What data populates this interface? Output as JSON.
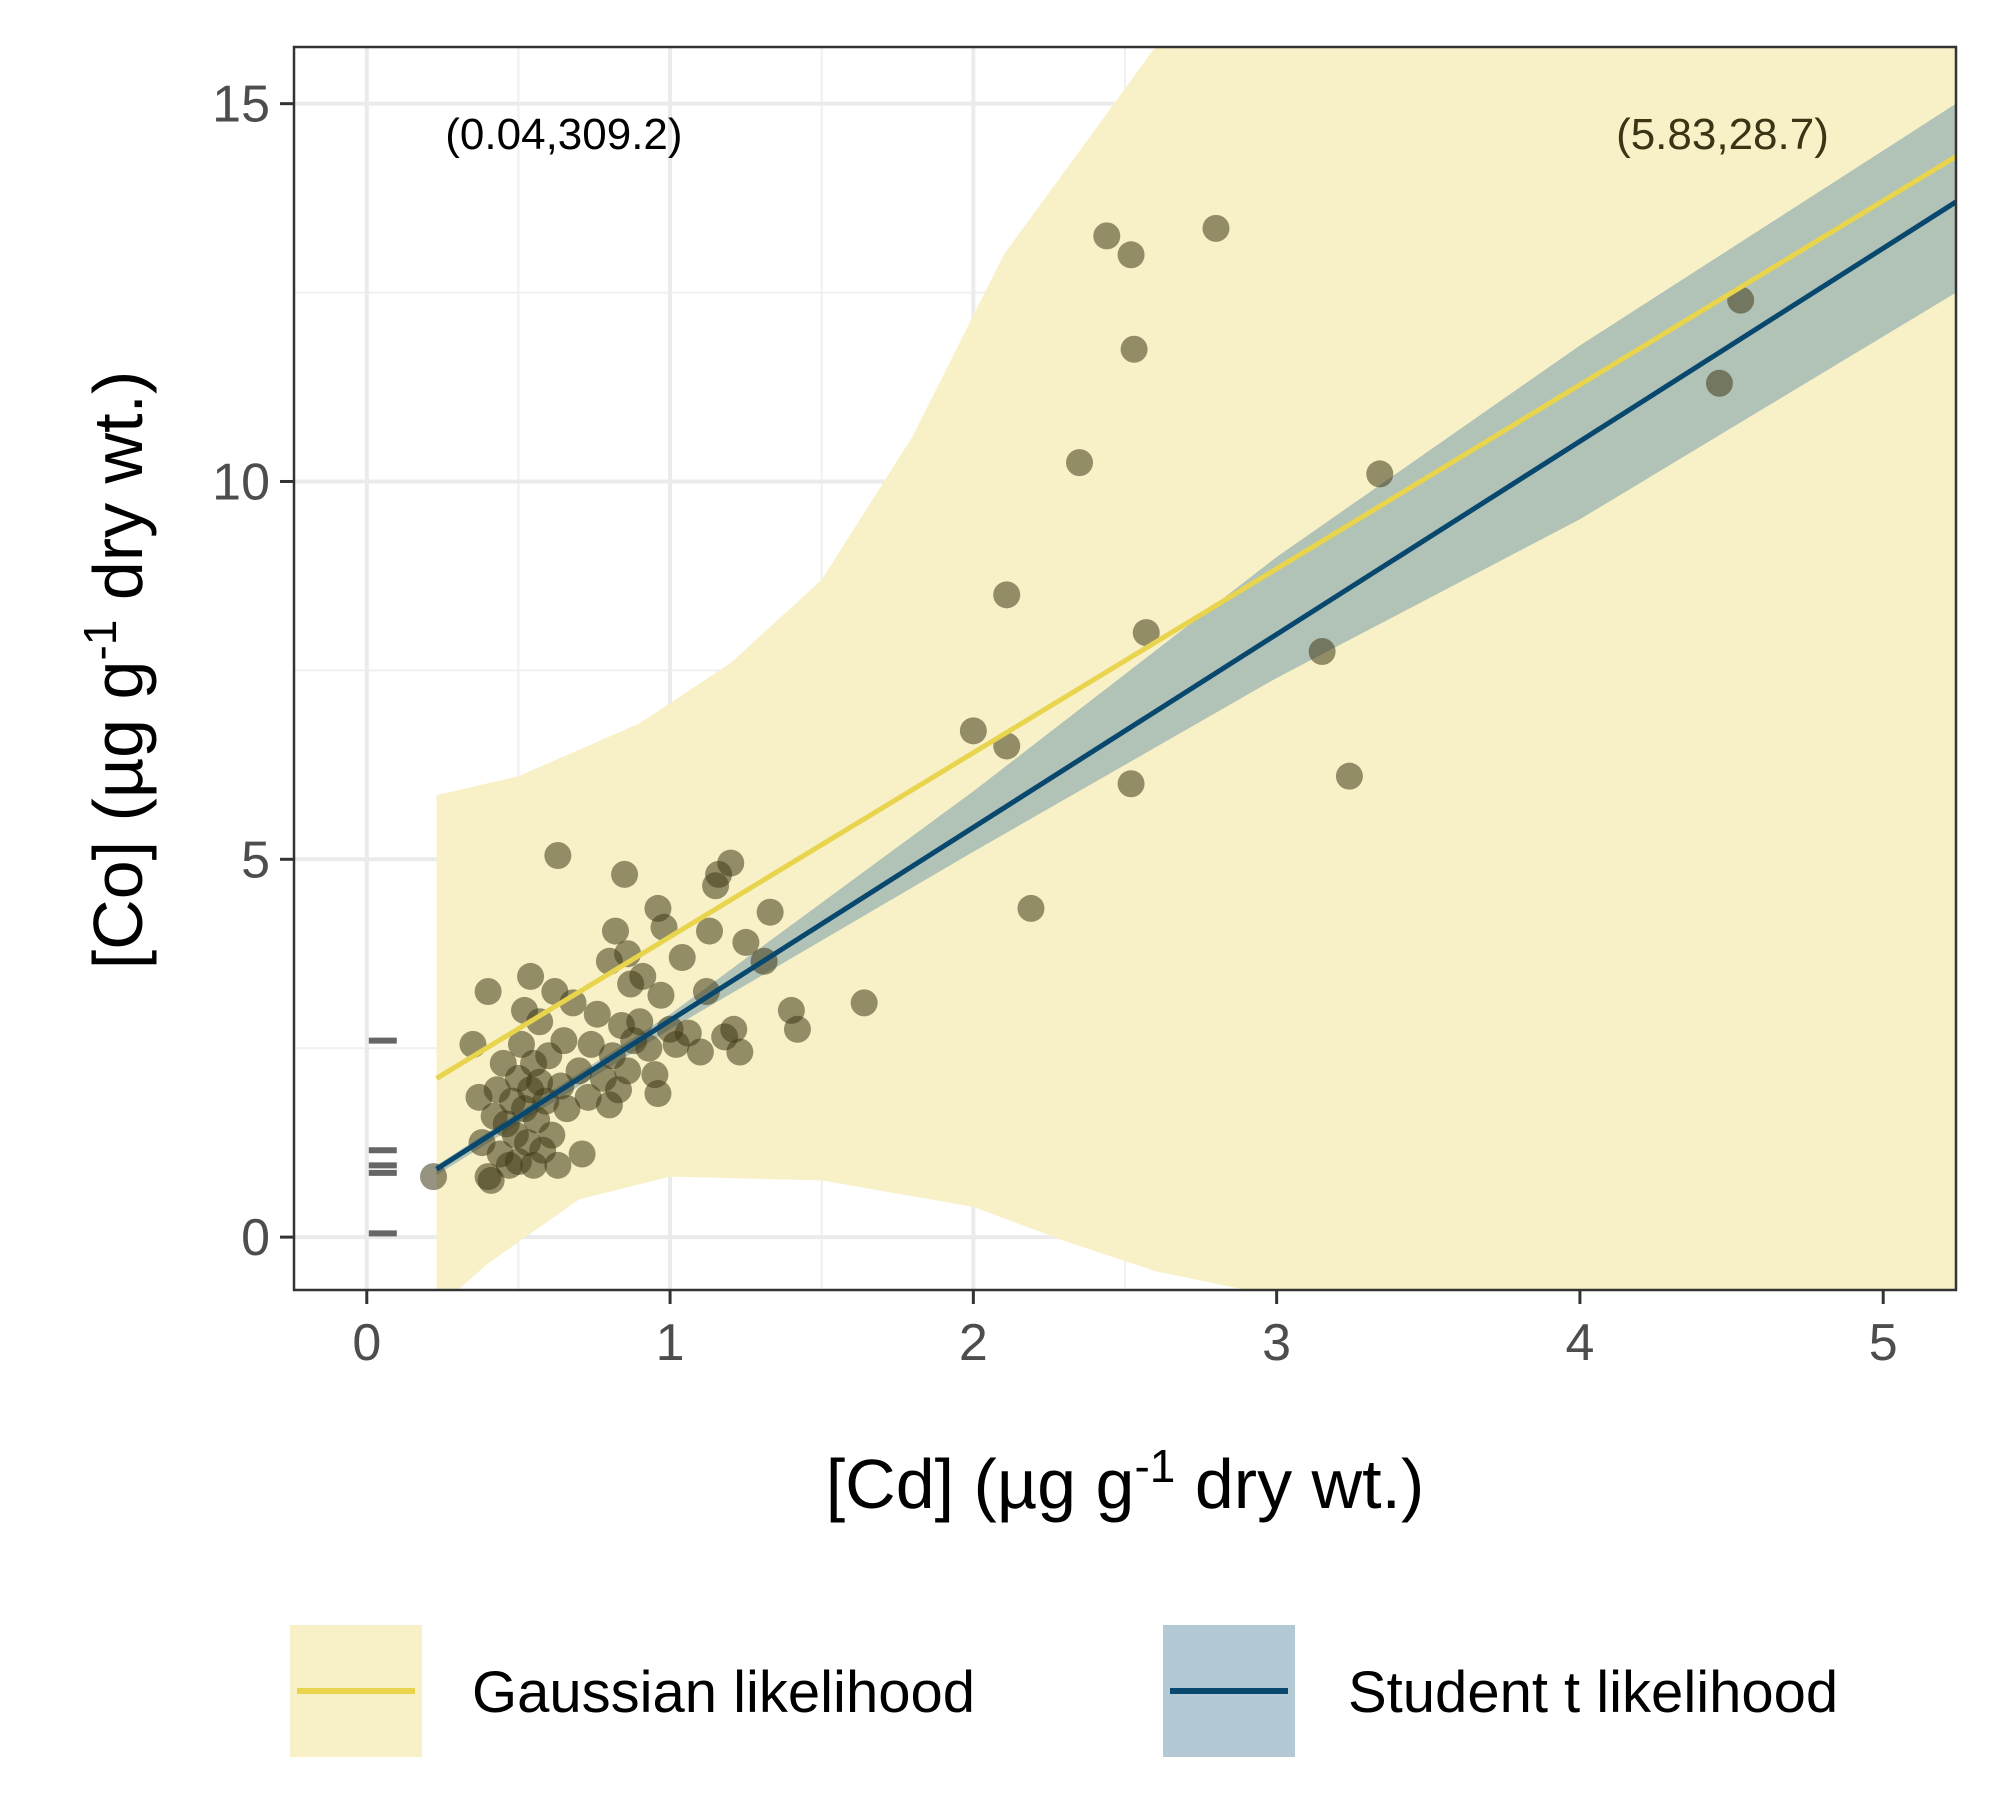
{
  "chart_data": {
    "type": "scatter",
    "xlabel_main": "[Cd] (µg g",
    "xlabel_sup": "-1",
    "xlabel_tail": " dry wt.)",
    "ylabel_main": "[Co] (µg g",
    "ylabel_sup": "-1",
    "ylabel_tail": " dry wt.)",
    "xlim": [
      -0.24,
      5.24
    ],
    "ylim": [
      -0.7,
      15.75
    ],
    "x_ticks": [
      "0",
      "1",
      "2",
      "3",
      "4",
      "5"
    ],
    "y_ticks": [
      "0",
      "5",
      "10",
      "15"
    ],
    "grid": true,
    "annotations": [
      {
        "label": "(0.04,309.2)",
        "x": 0.65,
        "y": 14.4,
        "color": "#000000"
      },
      {
        "label": "(5.83,28.7)",
        "x": 4.47,
        "y": 14.4,
        "color": "#3a3515"
      }
    ],
    "series": [
      {
        "name": "Gaussian likelihood",
        "color": "#e8d44d",
        "fill": "#f8f1c7",
        "fit": [
          [
            0.23,
            2.1
          ],
          [
            5.24,
            14.3
          ]
        ],
        "band_upper": [
          [
            0.23,
            5.85
          ],
          [
            0.5,
            6.1
          ],
          [
            0.9,
            6.8
          ],
          [
            1.2,
            7.6
          ],
          [
            1.5,
            8.7
          ],
          [
            1.8,
            10.6
          ],
          [
            2.1,
            13.0
          ],
          [
            2.6,
            15.75
          ],
          [
            5.24,
            15.75
          ]
        ],
        "band_lower": [
          [
            5.24,
            -0.7
          ],
          [
            2.9,
            -0.7
          ],
          [
            2.6,
            -0.45
          ],
          [
            2.3,
            -0.05
          ],
          [
            2.0,
            0.4
          ],
          [
            1.5,
            0.75
          ],
          [
            1.0,
            0.8
          ],
          [
            0.7,
            0.5
          ],
          [
            0.4,
            -0.35
          ],
          [
            0.3,
            -0.7
          ],
          [
            0.23,
            -0.7
          ]
        ]
      },
      {
        "name": "Student t likelihood",
        "color": "#08476e",
        "fill": "#9fb6b1",
        "fit": [
          [
            0.23,
            0.9
          ],
          [
            5.24,
            13.7
          ]
        ],
        "band_upper": [
          [
            0.23,
            0.95
          ],
          [
            1.0,
            2.95
          ],
          [
            2.0,
            5.9
          ],
          [
            3.0,
            9.0
          ],
          [
            4.0,
            11.8
          ],
          [
            5.24,
            15.0
          ]
        ],
        "band_lower": [
          [
            5.24,
            12.5
          ],
          [
            4.0,
            9.5
          ],
          [
            3.0,
            7.4
          ],
          [
            2.0,
            5.1
          ],
          [
            1.0,
            2.75
          ],
          [
            0.23,
            0.82
          ]
        ]
      }
    ],
    "points": [
      [
        0.22,
        0.8
      ],
      [
        0.35,
        2.55
      ],
      [
        0.37,
        1.85
      ],
      [
        0.38,
        1.25
      ],
      [
        0.4,
        0.8
      ],
      [
        0.4,
        3.25
      ],
      [
        0.41,
        0.75
      ],
      [
        0.42,
        1.6
      ],
      [
        0.43,
        1.95
      ],
      [
        0.44,
        1.1
      ],
      [
        0.45,
        2.3
      ],
      [
        0.46,
        1.5
      ],
      [
        0.47,
        0.95
      ],
      [
        0.48,
        1.8
      ],
      [
        0.49,
        1.35
      ],
      [
        0.5,
        2.1
      ],
      [
        0.5,
        1.0
      ],
      [
        0.51,
        2.55
      ],
      [
        0.52,
        1.7
      ],
      [
        0.52,
        3.0
      ],
      [
        0.53,
        1.25
      ],
      [
        0.54,
        1.95
      ],
      [
        0.54,
        3.45
      ],
      [
        0.55,
        0.95
      ],
      [
        0.55,
        2.3
      ],
      [
        0.56,
        1.55
      ],
      [
        0.57,
        2.05
      ],
      [
        0.57,
        2.85
      ],
      [
        0.58,
        1.15
      ],
      [
        0.59,
        1.8
      ],
      [
        0.6,
        2.4
      ],
      [
        0.61,
        1.35
      ],
      [
        0.62,
        3.25
      ],
      [
        0.63,
        0.95
      ],
      [
        0.63,
        5.05
      ],
      [
        0.64,
        2.0
      ],
      [
        0.65,
        2.6
      ],
      [
        0.66,
        1.7
      ],
      [
        0.68,
        3.1
      ],
      [
        0.7,
        2.2
      ],
      [
        0.71,
        1.1
      ],
      [
        0.73,
        1.85
      ],
      [
        0.74,
        2.55
      ],
      [
        0.76,
        2.95
      ],
      [
        0.78,
        2.1
      ],
      [
        0.8,
        3.65
      ],
      [
        0.8,
        1.75
      ],
      [
        0.81,
        2.4
      ],
      [
        0.82,
        4.05
      ],
      [
        0.83,
        1.95
      ],
      [
        0.84,
        2.8
      ],
      [
        0.85,
        4.8
      ],
      [
        0.86,
        3.75
      ],
      [
        0.86,
        2.2
      ],
      [
        0.87,
        3.35
      ],
      [
        0.88,
        2.6
      ],
      [
        0.9,
        2.85
      ],
      [
        0.91,
        3.45
      ],
      [
        0.93,
        2.5
      ],
      [
        0.95,
        2.15
      ],
      [
        0.96,
        1.9
      ],
      [
        0.96,
        4.35
      ],
      [
        0.97,
        3.2
      ],
      [
        0.98,
        4.1
      ],
      [
        1.0,
        2.75
      ],
      [
        1.02,
        2.55
      ],
      [
        1.04,
        3.7
      ],
      [
        1.06,
        2.7
      ],
      [
        1.1,
        2.45
      ],
      [
        1.12,
        3.25
      ],
      [
        1.13,
        4.05
      ],
      [
        1.15,
        4.65
      ],
      [
        1.16,
        4.8
      ],
      [
        1.18,
        2.65
      ],
      [
        1.2,
        4.95
      ],
      [
        1.21,
        2.75
      ],
      [
        1.23,
        2.45
      ],
      [
        1.25,
        3.9
      ],
      [
        1.31,
        3.65
      ],
      [
        1.33,
        4.3
      ],
      [
        1.4,
        3.0
      ],
      [
        1.42,
        2.75
      ],
      [
        1.64,
        3.1
      ],
      [
        2.0,
        6.7
      ],
      [
        2.11,
        8.5
      ],
      [
        2.11,
        6.5
      ],
      [
        2.19,
        4.35
      ],
      [
        2.35,
        10.25
      ],
      [
        2.44,
        13.25
      ],
      [
        2.52,
        13.0
      ],
      [
        2.52,
        6.0
      ],
      [
        2.53,
        11.75
      ],
      [
        2.57,
        8.0
      ],
      [
        2.8,
        13.35
      ],
      [
        3.15,
        7.75
      ],
      [
        3.24,
        6.1
      ],
      [
        3.34,
        10.1
      ],
      [
        4.46,
        11.3
      ],
      [
        4.53,
        12.4
      ]
    ],
    "rug_y": [
      2.6,
      1.15,
      0.95,
      0.85,
      0.05
    ],
    "point_color": "#3f3b18",
    "legend_position": "bottom"
  }
}
